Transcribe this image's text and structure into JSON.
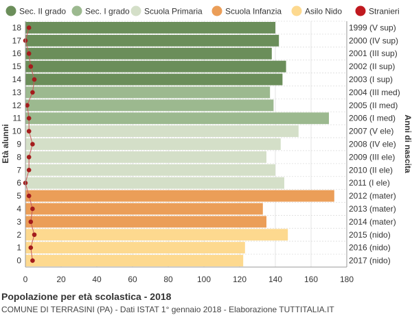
{
  "footer": {
    "title": "Popolazione per età scolastica - 2018",
    "subtitle": "COMUNE DI TERRASINI (PA) - Dati ISTAT 1° gennaio 2018 - Elaborazione TUTTITALIA.IT"
  },
  "chart_data": {
    "type": "bar",
    "orientation": "horizontal",
    "ylabel_left": "Età alunni",
    "ylabel_right": "Anni di nascita",
    "xlim": [
      0,
      180
    ],
    "xticks": [
      0,
      20,
      40,
      60,
      80,
      100,
      120,
      140,
      160,
      180
    ],
    "legend": [
      {
        "name": "Sec. II grado",
        "color": "#6b8e5a"
      },
      {
        "name": "Sec. I grado",
        "color": "#9cb98f"
      },
      {
        "name": "Scuola Primaria",
        "color": "#d4dfc8"
      },
      {
        "name": "Scuola Infanzia",
        "color": "#eb9e58"
      },
      {
        "name": "Asilo Nido",
        "color": "#fdd98f"
      },
      {
        "name": "Stranieri",
        "color": "#c0191f"
      }
    ],
    "legend_position": "top",
    "ages": [
      18,
      17,
      16,
      15,
      14,
      13,
      12,
      11,
      10,
      9,
      8,
      7,
      6,
      5,
      4,
      3,
      2,
      1,
      0
    ],
    "birth_years": [
      "1999 (V sup)",
      "2000 (IV sup)",
      "2001 (III sup)",
      "2002 (II sup)",
      "2003 (I sup)",
      "2004 (III med)",
      "2005 (II med)",
      "2006 (I med)",
      "2007 (V ele)",
      "2008 (IV ele)",
      "2009 (III ele)",
      "2010 (II ele)",
      "2011 (I ele)",
      "2012 (mater)",
      "2013 (mater)",
      "2014 (mater)",
      "2015 (nido)",
      "2016 (nido)",
      "2017 (nido)"
    ],
    "values": [
      140,
      142,
      138,
      146,
      144,
      137,
      139,
      170,
      153,
      143,
      135,
      140,
      145,
      173,
      133,
      135,
      147,
      123,
      122
    ],
    "categories_by_bar": [
      "Sec. II grado",
      "Sec. II grado",
      "Sec. II grado",
      "Sec. II grado",
      "Sec. II grado",
      "Sec. I grado",
      "Sec. I grado",
      "Sec. I grado",
      "Scuola Primaria",
      "Scuola Primaria",
      "Scuola Primaria",
      "Scuola Primaria",
      "Scuola Primaria",
      "Scuola Infanzia",
      "Scuola Infanzia",
      "Scuola Infanzia",
      "Asilo Nido",
      "Asilo Nido",
      "Asilo Nido"
    ],
    "stranieri": [
      2,
      0,
      2,
      3,
      5,
      4,
      1,
      2,
      2,
      4,
      2,
      2,
      0,
      2,
      4,
      3,
      5,
      3,
      4
    ],
    "grid": true
  }
}
